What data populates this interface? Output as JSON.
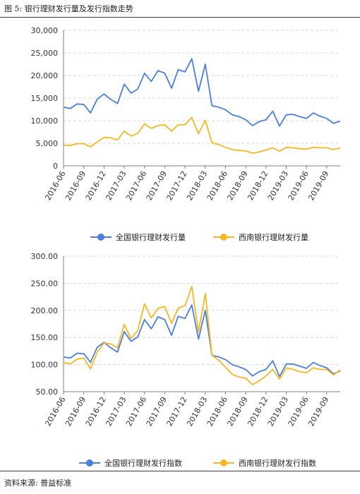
{
  "figure": {
    "title": "图 5:  银行理财发行量及发行指数走势",
    "source": "资料来源:  普益标准"
  },
  "chart_data": [
    {
      "type": "line",
      "x": [
        "2016-06",
        "2016-07",
        "2016-08",
        "2016-09",
        "2016-10",
        "2016-11",
        "2016-12",
        "2017-01",
        "2017-02",
        "2017-03",
        "2017-04",
        "2017-05",
        "2017-06",
        "2017-07",
        "2017-08",
        "2017-09",
        "2017-10",
        "2017-11",
        "2017-12",
        "2018-01",
        "2018-02",
        "2018-03",
        "2018-04",
        "2018-05",
        "2018-06",
        "2018-07",
        "2018-08",
        "2018-09",
        "2018-10",
        "2018-11",
        "2018-12",
        "2019-01",
        "2019-02",
        "2019-03",
        "2019-04",
        "2019-05",
        "2019-06",
        "2019-07",
        "2019-08",
        "2019-09",
        "2019-10",
        "2019-11"
      ],
      "tick_labels": [
        "2016-06",
        "2016-09",
        "2016-12",
        "2017-03",
        "2017-06",
        "2017-09",
        "2017-12",
        "2018-03",
        "2018-06",
        "2018-09",
        "2018-12",
        "2019-03",
        "2019-06",
        "2019-09"
      ],
      "series": [
        {
          "name": "全国银行理财发行量",
          "color": "#4a7fe0",
          "values": [
            13000,
            12700,
            13700,
            13600,
            11700,
            14800,
            15900,
            14700,
            13800,
            18100,
            16100,
            17000,
            20500,
            18700,
            21100,
            20500,
            17200,
            21300,
            20800,
            23700,
            16500,
            22500,
            13300,
            13000,
            12400,
            11300,
            10900,
            10200,
            8900,
            9800,
            10200,
            12100,
            8800,
            11300,
            11400,
            10900,
            10500,
            11700,
            11000,
            10500,
            9400,
            9900
          ]
        },
        {
          "name": "西南银行理财发行量",
          "color": "#f5b820",
          "values": [
            4600,
            4500,
            4900,
            4900,
            4200,
            5300,
            6300,
            6200,
            5700,
            7700,
            6600,
            7200,
            9300,
            8300,
            8900,
            9100,
            7700,
            9100,
            9100,
            10700,
            7100,
            10100,
            5100,
            4700,
            4100,
            3600,
            3400,
            3300,
            2800,
            3100,
            3500,
            4000,
            3200,
            4100,
            4000,
            3800,
            3700,
            4100,
            4000,
            4000,
            3600,
            4000
          ]
        }
      ],
      "yticks": [
        "0",
        "5,000",
        "10,000",
        "15,000",
        "20,000",
        "25,000",
        "30,000"
      ],
      "ylim": [
        0,
        30000
      ],
      "grid": true,
      "legend": "bottom"
    },
    {
      "type": "line",
      "x": [
        "2016-06",
        "2016-07",
        "2016-08",
        "2016-09",
        "2016-10",
        "2016-11",
        "2016-12",
        "2017-01",
        "2017-02",
        "2017-03",
        "2017-04",
        "2017-05",
        "2017-06",
        "2017-07",
        "2017-08",
        "2017-09",
        "2017-10",
        "2017-11",
        "2017-12",
        "2018-01",
        "2018-02",
        "2018-03",
        "2018-04",
        "2018-05",
        "2018-06",
        "2018-07",
        "2018-08",
        "2018-09",
        "2018-10",
        "2018-11",
        "2018-12",
        "2019-01",
        "2019-02",
        "2019-03",
        "2019-04",
        "2019-05",
        "2019-06",
        "2019-07",
        "2019-08",
        "2019-09",
        "2019-10",
        "2019-11"
      ],
      "tick_labels": [
        "2016-06",
        "2016-09",
        "2016-12",
        "2017-03",
        "2017-06",
        "2017-09",
        "2017-12",
        "2018-03",
        "2018-06",
        "2018-09",
        "2018-12",
        "2019-03",
        "2019-06",
        "2019-09"
      ],
      "series": [
        {
          "name": "全国银行理财发行指数",
          "color": "#4a7fe0",
          "values": [
            114,
            112,
            121,
            120,
            104,
            132,
            141,
            131,
            123,
            161,
            143,
            151,
            183,
            166,
            188,
            183,
            154,
            189,
            185,
            210,
            147,
            200,
            117,
            114,
            109,
            100,
            96,
            91,
            79,
            87,
            91,
            107,
            78,
            101,
            101,
            97,
            93,
            104,
            98,
            94,
            83,
            88
          ]
        },
        {
          "name": "西南银行理财发行指数",
          "color": "#f5b820",
          "values": [
            104,
            101,
            110,
            112,
            92,
            123,
            140,
            138,
            131,
            174,
            148,
            163,
            212,
            186,
            204,
            207,
            176,
            204,
            209,
            244,
            160,
            231,
            117,
            108,
            95,
            82,
            77,
            75,
            63,
            70,
            79,
            91,
            73,
            94,
            91,
            87,
            85,
            94,
            91,
            91,
            81,
            90
          ]
        }
      ],
      "yticks": [
        "50.00",
        "100.00",
        "150.00",
        "200.00",
        "250.00",
        "300.00"
      ],
      "ylim": [
        50,
        300
      ],
      "grid": true,
      "legend": "bottom"
    }
  ]
}
